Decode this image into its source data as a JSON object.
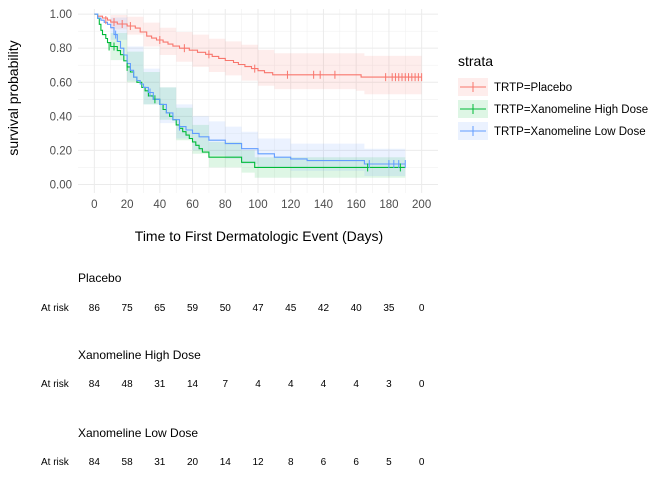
{
  "chart_data": {
    "type": "line",
    "subtype": "kaplan-meier",
    "xlabel": "Time to First Dermatologic Event (Days)",
    "ylabel": "survival probability",
    "xlim": [
      -10,
      210
    ],
    "ylim": [
      -0.05,
      1.03
    ],
    "x_ticks": [
      0,
      20,
      40,
      60,
      80,
      100,
      120,
      140,
      160,
      180,
      200
    ],
    "y_ticks": [
      0,
      0.2,
      0.4,
      0.6,
      0.8,
      1.0
    ],
    "y_tick_labels": [
      "0.00",
      "0.20",
      "0.40",
      "0.60",
      "0.80",
      "1.00"
    ],
    "grid": true,
    "legend_title": "strata",
    "legend_position": "right",
    "series": [
      {
        "name": "TRTP=Placebo",
        "color": "#F8766D",
        "steps": [
          [
            0,
            1.0
          ],
          [
            2,
            0.988
          ],
          [
            5,
            0.977
          ],
          [
            8,
            0.965
          ],
          [
            10,
            0.953
          ],
          [
            14,
            0.942
          ],
          [
            20,
            0.93
          ],
          [
            25,
            0.918
          ],
          [
            28,
            0.895
          ],
          [
            32,
            0.871
          ],
          [
            35,
            0.859
          ],
          [
            38,
            0.848
          ],
          [
            42,
            0.836
          ],
          [
            45,
            0.824
          ],
          [
            48,
            0.812
          ],
          [
            52,
            0.8
          ],
          [
            58,
            0.788
          ],
          [
            63,
            0.776
          ],
          [
            68,
            0.764
          ],
          [
            72,
            0.752
          ],
          [
            76,
            0.74
          ],
          [
            80,
            0.728
          ],
          [
            85,
            0.716
          ],
          [
            88,
            0.704
          ],
          [
            92,
            0.692
          ],
          [
            96,
            0.68
          ],
          [
            100,
            0.668
          ],
          [
            104,
            0.656
          ],
          [
            109,
            0.644
          ],
          [
            115,
            0.644
          ],
          [
            160,
            0.644
          ],
          [
            163,
            0.63
          ],
          [
            188,
            0.63
          ],
          [
            200,
            0.63
          ]
        ],
        "lower": [
          [
            0,
            1.0
          ],
          [
            10,
            0.91
          ],
          [
            20,
            0.88
          ],
          [
            30,
            0.81
          ],
          [
            40,
            0.76
          ],
          [
            50,
            0.72
          ],
          [
            60,
            0.69
          ],
          [
            70,
            0.66
          ],
          [
            80,
            0.64
          ],
          [
            90,
            0.61
          ],
          [
            100,
            0.58
          ],
          [
            110,
            0.56
          ],
          [
            160,
            0.55
          ],
          [
            165,
            0.53
          ],
          [
            200,
            0.53
          ]
        ],
        "upper": [
          [
            0,
            1.0
          ],
          [
            10,
            0.995
          ],
          [
            20,
            0.985
          ],
          [
            30,
            0.95
          ],
          [
            40,
            0.92
          ],
          [
            50,
            0.895
          ],
          [
            60,
            0.88
          ],
          [
            70,
            0.855
          ],
          [
            80,
            0.84
          ],
          [
            90,
            0.82
          ],
          [
            100,
            0.79
          ],
          [
            110,
            0.77
          ],
          [
            160,
            0.77
          ],
          [
            165,
            0.755
          ],
          [
            200,
            0.755
          ]
        ],
        "censored": [
          [
            7,
            0.965
          ],
          [
            12,
            0.953
          ],
          [
            17,
            0.942
          ],
          [
            22,
            0.93
          ],
          [
            40,
            0.848
          ],
          [
            55,
            0.8
          ],
          [
            70,
            0.764
          ],
          [
            98,
            0.68
          ],
          [
            118,
            0.644
          ],
          [
            134,
            0.644
          ],
          [
            138,
            0.644
          ],
          [
            147,
            0.644
          ],
          [
            178,
            0.63
          ],
          [
            182,
            0.63
          ],
          [
            184,
            0.63
          ],
          [
            186,
            0.63
          ],
          [
            188,
            0.63
          ],
          [
            190,
            0.63
          ],
          [
            192,
            0.63
          ],
          [
            194,
            0.63
          ],
          [
            196,
            0.63
          ],
          [
            198,
            0.63
          ],
          [
            200,
            0.63
          ]
        ]
      },
      {
        "name": "TRTP=Xanomeline High Dose",
        "color": "#00BA38",
        "steps": [
          [
            0,
            1.0
          ],
          [
            2,
            0.976
          ],
          [
            3,
            0.94
          ],
          [
            4,
            0.905
          ],
          [
            5,
            0.88
          ],
          [
            7,
            0.857
          ],
          [
            8,
            0.833
          ],
          [
            10,
            0.81
          ],
          [
            14,
            0.786
          ],
          [
            16,
            0.762
          ],
          [
            18,
            0.726
          ],
          [
            20,
            0.69
          ],
          [
            22,
            0.66
          ],
          [
            24,
            0.63
          ],
          [
            26,
            0.6
          ],
          [
            29,
            0.57
          ],
          [
            31,
            0.55
          ],
          [
            33,
            0.52
          ],
          [
            36,
            0.5
          ],
          [
            40,
            0.47
          ],
          [
            42,
            0.44
          ],
          [
            44,
            0.42
          ],
          [
            46,
            0.4
          ],
          [
            48,
            0.38
          ],
          [
            50,
            0.35
          ],
          [
            52,
            0.33
          ],
          [
            54,
            0.31
          ],
          [
            56,
            0.29
          ],
          [
            58,
            0.27
          ],
          [
            60,
            0.25
          ],
          [
            62,
            0.23
          ],
          [
            64,
            0.21
          ],
          [
            66,
            0.19
          ],
          [
            70,
            0.16
          ],
          [
            90,
            0.13
          ],
          [
            98,
            0.1
          ],
          [
            140,
            0.1
          ],
          [
            170,
            0.1
          ],
          [
            190,
            0.1
          ]
        ],
        "lower": [
          [
            0,
            1.0
          ],
          [
            10,
            0.73
          ],
          [
            20,
            0.6
          ],
          [
            30,
            0.47
          ],
          [
            40,
            0.38
          ],
          [
            50,
            0.26
          ],
          [
            60,
            0.18
          ],
          [
            70,
            0.1
          ],
          [
            90,
            0.07
          ],
          [
            98,
            0.04
          ],
          [
            190,
            0.04
          ]
        ],
        "upper": [
          [
            0,
            1.0
          ],
          [
            10,
            0.89
          ],
          [
            20,
            0.78
          ],
          [
            30,
            0.66
          ],
          [
            40,
            0.57
          ],
          [
            50,
            0.45
          ],
          [
            60,
            0.35
          ],
          [
            70,
            0.25
          ],
          [
            90,
            0.2
          ],
          [
            98,
            0.16
          ],
          [
            190,
            0.16
          ]
        ],
        "censored": [
          [
            9,
            0.81
          ],
          [
            12,
            0.81
          ],
          [
            20,
            0.69
          ],
          [
            37,
            0.5
          ],
          [
            167,
            0.1
          ],
          [
            187,
            0.1
          ]
        ]
      },
      {
        "name": "TRTP=Xanomeline Low Dose",
        "color": "#619CFF",
        "steps": [
          [
            0,
            1.0
          ],
          [
            2,
            0.976
          ],
          [
            4,
            0.964
          ],
          [
            6,
            0.952
          ],
          [
            8,
            0.94
          ],
          [
            10,
            0.92
          ],
          [
            12,
            0.88
          ],
          [
            14,
            0.84
          ],
          [
            16,
            0.8
          ],
          [
            18,
            0.76
          ],
          [
            20,
            0.71
          ],
          [
            22,
            0.67
          ],
          [
            24,
            0.63
          ],
          [
            26,
            0.61
          ],
          [
            28,
            0.59
          ],
          [
            30,
            0.57
          ],
          [
            33,
            0.54
          ],
          [
            36,
            0.5
          ],
          [
            40,
            0.47
          ],
          [
            44,
            0.42
          ],
          [
            48,
            0.38
          ],
          [
            52,
            0.34
          ],
          [
            56,
            0.32
          ],
          [
            60,
            0.3
          ],
          [
            64,
            0.28
          ],
          [
            70,
            0.26
          ],
          [
            80,
            0.24
          ],
          [
            90,
            0.21
          ],
          [
            100,
            0.18
          ],
          [
            110,
            0.16
          ],
          [
            120,
            0.15
          ],
          [
            130,
            0.14
          ],
          [
            165,
            0.12
          ],
          [
            190,
            0.12
          ]
        ],
        "lower": [
          [
            0,
            1.0
          ],
          [
            10,
            0.85
          ],
          [
            20,
            0.61
          ],
          [
            30,
            0.47
          ],
          [
            40,
            0.36
          ],
          [
            50,
            0.27
          ],
          [
            60,
            0.2
          ],
          [
            70,
            0.17
          ],
          [
            80,
            0.15
          ],
          [
            90,
            0.12
          ],
          [
            100,
            0.1
          ],
          [
            120,
            0.08
          ],
          [
            165,
            0.05
          ],
          [
            190,
            0.05
          ]
        ],
        "upper": [
          [
            0,
            1.0
          ],
          [
            10,
            0.98
          ],
          [
            20,
            0.81
          ],
          [
            30,
            0.68
          ],
          [
            40,
            0.57
          ],
          [
            50,
            0.47
          ],
          [
            60,
            0.4
          ],
          [
            70,
            0.37
          ],
          [
            80,
            0.34
          ],
          [
            90,
            0.31
          ],
          [
            100,
            0.27
          ],
          [
            120,
            0.24
          ],
          [
            165,
            0.21
          ],
          [
            190,
            0.21
          ]
        ],
        "censored": [
          [
            13,
            0.88
          ],
          [
            34,
            0.54
          ],
          [
            52,
            0.34
          ],
          [
            168,
            0.12
          ],
          [
            180,
            0.12
          ],
          [
            183,
            0.12
          ],
          [
            186,
            0.12
          ],
          [
            190,
            0.12
          ]
        ]
      }
    ]
  },
  "risk_table": {
    "times": [
      0,
      20,
      40,
      60,
      80,
      100,
      120,
      140,
      160,
      180,
      200
    ],
    "row_label": "At risk",
    "groups": [
      {
        "title": "Placebo",
        "counts": [
          "86",
          "75",
          "65",
          "59",
          "50",
          "47",
          "45",
          "42",
          "40",
          "35",
          "0"
        ]
      },
      {
        "title": "Xanomeline High Dose",
        "counts": [
          "84",
          "48",
          "31",
          "14",
          "7",
          "4",
          "4",
          "4",
          "4",
          "3",
          "0"
        ]
      },
      {
        "title": "Xanomeline Low Dose",
        "counts": [
          "84",
          "58",
          "31",
          "20",
          "14",
          "12",
          "8",
          "6",
          "6",
          "5",
          "0"
        ]
      }
    ]
  }
}
